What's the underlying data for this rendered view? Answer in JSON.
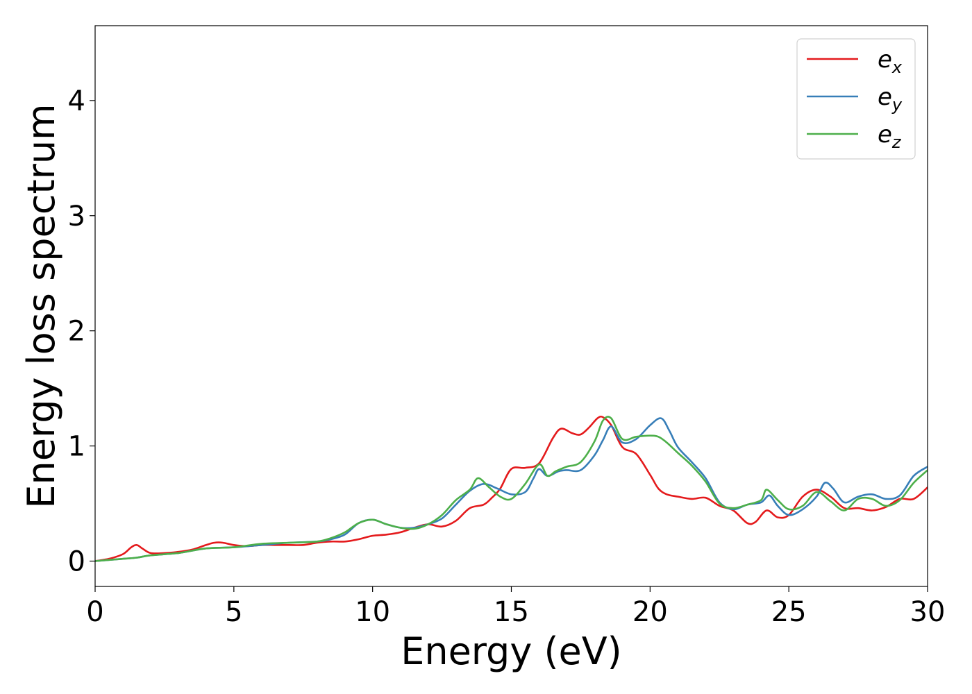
{
  "chart_data": {
    "type": "line",
    "xlabel": "Energy (eV)",
    "ylabel": "Energy loss spectrum",
    "xlim": [
      0,
      30
    ],
    "ylim": [
      -0.22,
      4.65
    ],
    "xticks": [
      0,
      5,
      10,
      15,
      20,
      25,
      30
    ],
    "yticks": [
      0,
      1,
      2,
      3,
      4
    ],
    "grid": false,
    "legend_position": "top-right",
    "series": [
      {
        "name": "e_x",
        "label_base": "e",
        "label_sub": "x",
        "color": "#e41a1c",
        "x": [
          0,
          0.5,
          1.0,
          1.3,
          1.5,
          1.7,
          2.0,
          2.5,
          3.0,
          3.5,
          4.0,
          4.3,
          4.6,
          5.0,
          5.5,
          6.0,
          6.5,
          7.0,
          7.5,
          8.0,
          8.5,
          9.0,
          9.5,
          10.0,
          10.5,
          11.0,
          11.5,
          12.0,
          12.5,
          13.0,
          13.5,
          14.0,
          14.3,
          14.6,
          15.0,
          15.5,
          16.0,
          16.5,
          16.8,
          17.2,
          17.5,
          17.8,
          18.1,
          18.3,
          18.6,
          19.0,
          19.5,
          20.0,
          20.3,
          20.6,
          21.0,
          21.5,
          22.0,
          22.5,
          23.0,
          23.5,
          23.8,
          24.2,
          24.6,
          25.0,
          25.5,
          26.0,
          26.5,
          27.0,
          27.5,
          28.0,
          28.5,
          29.0,
          29.5,
          30.0
        ],
        "y": [
          0.0,
          0.02,
          0.06,
          0.12,
          0.14,
          0.11,
          0.07,
          0.07,
          0.08,
          0.1,
          0.14,
          0.16,
          0.16,
          0.14,
          0.13,
          0.14,
          0.14,
          0.14,
          0.14,
          0.16,
          0.17,
          0.17,
          0.19,
          0.22,
          0.23,
          0.25,
          0.29,
          0.32,
          0.3,
          0.35,
          0.46,
          0.49,
          0.55,
          0.63,
          0.8,
          0.81,
          0.85,
          1.07,
          1.15,
          1.11,
          1.1,
          1.16,
          1.24,
          1.25,
          1.18,
          0.99,
          0.93,
          0.75,
          0.63,
          0.58,
          0.56,
          0.54,
          0.55,
          0.48,
          0.44,
          0.33,
          0.34,
          0.44,
          0.38,
          0.4,
          0.56,
          0.62,
          0.56,
          0.46,
          0.46,
          0.44,
          0.47,
          0.54,
          0.54,
          0.64
        ]
      },
      {
        "name": "e_y",
        "label_base": "e",
        "label_sub": "y",
        "color": "#377eb8",
        "x": [
          0,
          0.5,
          1.0,
          1.5,
          2.0,
          3.0,
          4.0,
          5.0,
          6.0,
          7.0,
          8.0,
          8.5,
          9.0,
          9.5,
          10.0,
          10.5,
          11.0,
          11.5,
          12.0,
          12.5,
          13.0,
          13.5,
          14.0,
          14.5,
          15.0,
          15.5,
          15.8,
          16.0,
          16.3,
          16.7,
          17.0,
          17.5,
          18.0,
          18.3,
          18.6,
          19.0,
          19.5,
          20.0,
          20.4,
          20.7,
          21.0,
          21.5,
          22.0,
          22.5,
          23.0,
          23.5,
          24.0,
          24.3,
          24.6,
          25.0,
          25.5,
          26.0,
          26.3,
          26.6,
          27.0,
          27.5,
          28.0,
          28.5,
          29.0,
          29.5,
          30.0
        ],
        "y": [
          0.0,
          0.01,
          0.02,
          0.03,
          0.05,
          0.07,
          0.11,
          0.12,
          0.14,
          0.16,
          0.17,
          0.19,
          0.23,
          0.33,
          0.36,
          0.32,
          0.29,
          0.29,
          0.32,
          0.37,
          0.49,
          0.61,
          0.67,
          0.63,
          0.58,
          0.6,
          0.72,
          0.8,
          0.74,
          0.78,
          0.79,
          0.79,
          0.92,
          1.05,
          1.17,
          1.03,
          1.06,
          1.18,
          1.24,
          1.13,
          0.99,
          0.86,
          0.72,
          0.51,
          0.45,
          0.49,
          0.51,
          0.57,
          0.48,
          0.4,
          0.45,
          0.56,
          0.68,
          0.63,
          0.51,
          0.56,
          0.58,
          0.54,
          0.57,
          0.74,
          0.82
        ]
      },
      {
        "name": "e_z",
        "label_base": "e",
        "label_sub": "z",
        "color": "#4daf4a",
        "x": [
          0,
          0.5,
          1.0,
          1.5,
          2.0,
          3.0,
          4.0,
          5.0,
          6.0,
          7.0,
          8.0,
          8.5,
          9.0,
          9.5,
          10.0,
          10.5,
          11.0,
          11.5,
          12.0,
          12.5,
          13.0,
          13.5,
          13.8,
          14.2,
          14.6,
          15.0,
          15.5,
          16.0,
          16.3,
          16.6,
          17.0,
          17.5,
          18.0,
          18.3,
          18.6,
          19.0,
          19.5,
          20.0,
          20.3,
          20.6,
          21.0,
          21.5,
          22.0,
          22.5,
          23.0,
          23.5,
          24.0,
          24.2,
          24.6,
          25.0,
          25.5,
          26.0,
          26.5,
          27.0,
          27.5,
          28.0,
          28.5,
          29.0,
          29.5,
          30.0
        ],
        "y": [
          0.0,
          0.01,
          0.02,
          0.03,
          0.05,
          0.07,
          0.11,
          0.12,
          0.15,
          0.16,
          0.17,
          0.2,
          0.25,
          0.33,
          0.36,
          0.32,
          0.29,
          0.28,
          0.32,
          0.4,
          0.53,
          0.62,
          0.72,
          0.64,
          0.56,
          0.54,
          0.67,
          0.84,
          0.74,
          0.78,
          0.82,
          0.86,
          1.04,
          1.22,
          1.24,
          1.06,
          1.08,
          1.09,
          1.08,
          1.03,
          0.94,
          0.83,
          0.69,
          0.5,
          0.46,
          0.49,
          0.53,
          0.62,
          0.53,
          0.45,
          0.48,
          0.6,
          0.52,
          0.44,
          0.54,
          0.54,
          0.48,
          0.53,
          0.68,
          0.79
        ]
      }
    ]
  }
}
